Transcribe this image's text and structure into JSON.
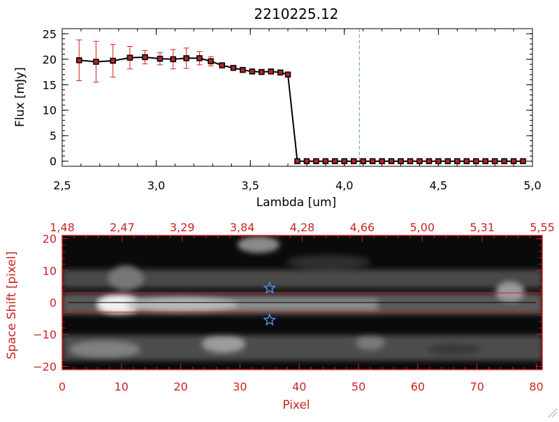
{
  "chart_data": [
    {
      "type": "line",
      "title": "2210225.12",
      "xlabel": "Lambda [um]",
      "ylabel": "Flux [mJy]",
      "xlim": [
        2.5,
        5.0
      ],
      "ylim": [
        -1,
        26
      ],
      "xticks": [
        2.5,
        3.0,
        3.5,
        4.0,
        4.5,
        5.0
      ],
      "xtick_labels": [
        "2,5",
        "3,0",
        "3,5",
        "4,0",
        "4,5",
        "5,0"
      ],
      "yticks": [
        0,
        5,
        10,
        15,
        20,
        25
      ],
      "ytick_labels": [
        "0",
        "5",
        "10",
        "15",
        "20",
        "25"
      ],
      "vline_x": 4.08,
      "colors": {
        "line": "#000000",
        "marker": "#b22222",
        "errorbar": "#d42020",
        "vline": "#5a9bd5",
        "axis": "#000000"
      },
      "series": [
        {
          "x": [
            2.59,
            2.68,
            2.77,
            2.86,
            2.94,
            3.02,
            3.09,
            3.16,
            3.23,
            3.29,
            3.35,
            3.41,
            3.46,
            3.51,
            3.56,
            3.61,
            3.66,
            3.7,
            3.75,
            3.8,
            3.85,
            3.9,
            3.95,
            4.0,
            4.05,
            4.1,
            4.15,
            4.2,
            4.25,
            4.3,
            4.35,
            4.4,
            4.45,
            4.5,
            4.55,
            4.6,
            4.65,
            4.7,
            4.75,
            4.8,
            4.85,
            4.9,
            4.95
          ],
          "y": [
            19.8,
            19.5,
            19.7,
            20.3,
            20.4,
            20.1,
            20.0,
            20.2,
            20.2,
            19.6,
            18.8,
            18.3,
            17.9,
            17.6,
            17.5,
            17.6,
            17.4,
            17.0,
            0,
            0,
            0,
            0,
            0,
            0,
            0,
            0,
            0,
            0,
            0,
            0,
            0,
            0,
            0,
            0,
            0,
            0,
            0,
            0,
            0,
            0,
            0,
            0,
            0
          ],
          "yerr": [
            4.0,
            4.0,
            3.2,
            2.2,
            1.3,
            1.2,
            1.9,
            2.0,
            1.3,
            0.9,
            0.5,
            0.3,
            0.2,
            0.2,
            0.2,
            0.2,
            0.2,
            0.2,
            0,
            0,
            0,
            0,
            0,
            0,
            0,
            0,
            0,
            0,
            0,
            0,
            0,
            0,
            0,
            0,
            0,
            0,
            0,
            0,
            0,
            0,
            0,
            0,
            0
          ]
        }
      ]
    },
    {
      "type": "heatmap",
      "xlabel": "Pixel",
      "ylabel": "Space Shift [pixel]",
      "xlim": [
        0,
        81
      ],
      "ylim": [
        -21,
        21
      ],
      "xticks": [
        0,
        10,
        20,
        30,
        40,
        50,
        60,
        70,
        80
      ],
      "xtick_labels": [
        "0",
        "10",
        "20",
        "30",
        "40",
        "50",
        "60",
        "70",
        "80"
      ],
      "yticks": [
        -20,
        -10,
        0,
        10,
        20
      ],
      "ytick_labels": [
        "−20",
        "−10",
        "0",
        "10",
        "20"
      ],
      "top_tick_labels": [
        "1,48",
        "2,47",
        "3,29",
        "3,84",
        "4,28",
        "4,66",
        "5,00",
        "5,31",
        "5,55"
      ],
      "hlines_y": [
        3,
        -3
      ],
      "center_line_y": 0,
      "stars": [
        {
          "x": 35,
          "y": 4.5
        },
        {
          "x": 35,
          "y": -5.5
        }
      ],
      "colors": {
        "axis": "#cc2222",
        "text": "#cc2222",
        "hline": "#cc2222",
        "star": "#4a90e2",
        "center_line": "#000000"
      }
    }
  ]
}
